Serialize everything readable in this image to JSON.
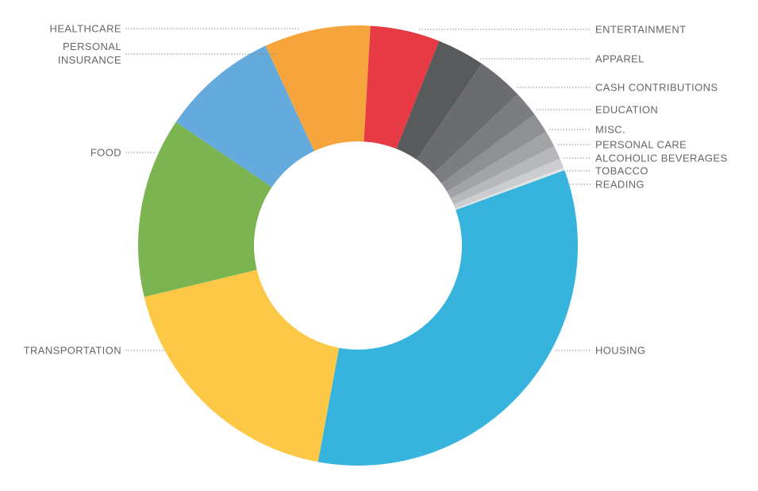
{
  "chart_data": {
    "type": "pie",
    "donut": true,
    "title": "",
    "legend": "none",
    "label_color": "#666666",
    "categories": [
      "HOUSING",
      "TRANSPORTATION",
      "FOOD",
      "PERSONAL INSURANCE",
      "HEALTHCARE",
      "ENTERTAINMENT",
      "APPAREL",
      "CASH CONTRIBUTIONS",
      "EDUCATION",
      "MISC.",
      "PERSONAL CARE",
      "ALCOHOLIC BEVERAGES",
      "TOBACCO",
      "READING"
    ],
    "values": [
      33.4,
      18.3,
      13.2,
      8.6,
      7.8,
      5.1,
      3.5,
      3.4,
      1.9,
      1.5,
      1.2,
      1.0,
      0.7,
      0.2
    ],
    "colors": [
      "#37b4de",
      "#fcc846",
      "#7cb452",
      "#64aadc",
      "#f6a43c",
      "#e83a44",
      "#595a5c",
      "#6a6c70",
      "#7b7d80",
      "#8e9093",
      "#a2a4a7",
      "#b6b8bb",
      "#cccdd0",
      "#e2e3e5"
    ]
  }
}
